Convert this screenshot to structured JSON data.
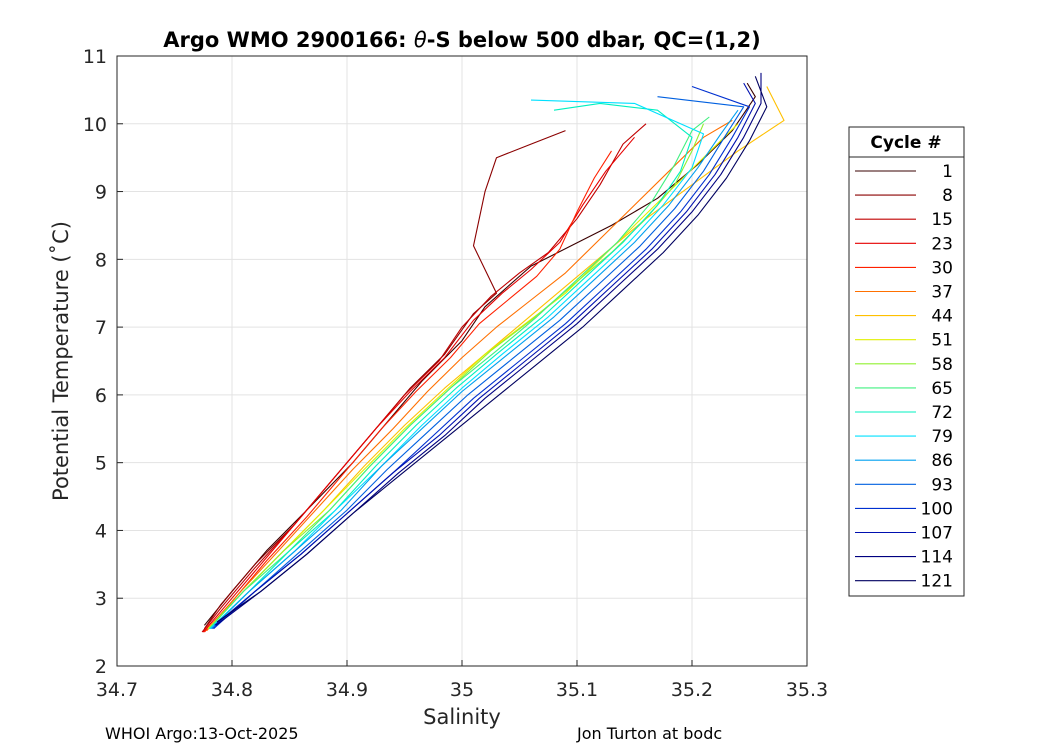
{
  "chart_data": {
    "type": "line",
    "title_prefix": "Argo WMO 2900166: ",
    "title_theta": "θ",
    "title_suffix": "-S below 500 dbar,  QC=(1,2)",
    "xlabel": "Salinity",
    "ylabel": "Potential Temperature (˚C)",
    "xlim": [
      34.7,
      35.3
    ],
    "ylim": [
      2,
      11
    ],
    "xticks": [
      "34.7",
      "34.8",
      "34.9",
      "35",
      "35.1",
      "35.2",
      "35.3"
    ],
    "yticks": [
      "2",
      "3",
      "4",
      "5",
      "6",
      "7",
      "8",
      "9",
      "10",
      "11"
    ],
    "grid": true,
    "legend_title": "Cycle #",
    "legend_position": "outside-right",
    "series": [
      {
        "name": "1",
        "color": "#3a0000",
        "points": [
          [
            34.776,
            2.6
          ],
          [
            34.8,
            3.1
          ],
          [
            34.83,
            3.7
          ],
          [
            34.865,
            4.3
          ],
          [
            34.905,
            5.0
          ],
          [
            34.935,
            5.6
          ],
          [
            34.965,
            6.2
          ],
          [
            35.0,
            6.8
          ],
          [
            35.02,
            7.3
          ],
          [
            35.04,
            7.6
          ],
          [
            35.06,
            7.9
          ],
          [
            35.095,
            8.2
          ],
          [
            35.13,
            8.5
          ],
          [
            35.17,
            8.9
          ],
          [
            35.205,
            9.4
          ],
          [
            35.235,
            9.9
          ],
          [
            35.255,
            10.4
          ],
          [
            35.248,
            10.6
          ]
        ]
      },
      {
        "name": "8",
        "color": "#8b0000",
        "points": [
          [
            34.776,
            2.55
          ],
          [
            34.79,
            2.9
          ],
          [
            34.82,
            3.5
          ],
          [
            34.855,
            4.1
          ],
          [
            34.89,
            4.8
          ],
          [
            34.925,
            5.5
          ],
          [
            34.955,
            6.1
          ],
          [
            34.985,
            6.6
          ],
          [
            35.01,
            7.2
          ],
          [
            35.03,
            7.5
          ],
          [
            35.01,
            8.2
          ],
          [
            35.02,
            9.0
          ],
          [
            35.03,
            9.5
          ],
          [
            35.06,
            9.7
          ],
          [
            35.09,
            9.9
          ]
        ]
      },
      {
        "name": "15",
        "color": "#c00000",
        "points": [
          [
            34.774,
            2.5
          ],
          [
            34.79,
            2.85
          ],
          [
            34.82,
            3.45
          ],
          [
            34.855,
            4.1
          ],
          [
            34.89,
            4.8
          ],
          [
            34.92,
            5.4
          ],
          [
            34.95,
            6.0
          ],
          [
            34.98,
            6.5
          ],
          [
            35.0,
            7.0
          ],
          [
            35.025,
            7.45
          ],
          [
            35.05,
            7.8
          ],
          [
            35.075,
            8.1
          ],
          [
            35.1,
            8.6
          ],
          [
            35.12,
            9.1
          ],
          [
            35.14,
            9.7
          ],
          [
            35.16,
            10.0
          ]
        ]
      },
      {
        "name": "23",
        "color": "#e60000",
        "points": [
          [
            34.775,
            2.5
          ],
          [
            34.8,
            3.0
          ],
          [
            34.83,
            3.6
          ],
          [
            34.86,
            4.2
          ],
          [
            34.895,
            4.9
          ],
          [
            34.925,
            5.5
          ],
          [
            34.955,
            6.05
          ],
          [
            34.985,
            6.55
          ],
          [
            35.01,
            7.1
          ],
          [
            35.035,
            7.5
          ],
          [
            35.06,
            7.85
          ],
          [
            35.085,
            8.25
          ],
          [
            35.105,
            8.8
          ],
          [
            35.125,
            9.3
          ],
          [
            35.15,
            9.8
          ]
        ]
      },
      {
        "name": "30",
        "color": "#ff2000",
        "points": [
          [
            34.776,
            2.5
          ],
          [
            34.8,
            2.95
          ],
          [
            34.83,
            3.55
          ],
          [
            34.865,
            4.2
          ],
          [
            34.9,
            4.9
          ],
          [
            34.93,
            5.5
          ],
          [
            34.96,
            6.05
          ],
          [
            34.99,
            6.55
          ],
          [
            35.015,
            7.05
          ],
          [
            35.04,
            7.4
          ],
          [
            35.065,
            7.75
          ],
          [
            35.085,
            8.15
          ],
          [
            35.1,
            8.7
          ],
          [
            35.115,
            9.2
          ],
          [
            35.13,
            9.6
          ]
        ]
      },
      {
        "name": "37",
        "color": "#ff7000",
        "points": [
          [
            34.778,
            2.52
          ],
          [
            34.805,
            3.05
          ],
          [
            34.835,
            3.6
          ],
          [
            34.87,
            4.25
          ],
          [
            34.905,
            4.9
          ],
          [
            34.94,
            5.5
          ],
          [
            34.97,
            6.05
          ],
          [
            35.0,
            6.55
          ],
          [
            35.03,
            7.0
          ],
          [
            35.06,
            7.4
          ],
          [
            35.09,
            7.8
          ],
          [
            35.12,
            8.3
          ],
          [
            35.15,
            8.8
          ],
          [
            35.18,
            9.3
          ],
          [
            35.21,
            9.8
          ],
          [
            35.235,
            10.05
          ]
        ]
      },
      {
        "name": "44",
        "color": "#ffc000",
        "points": [
          [
            34.779,
            2.55
          ],
          [
            34.81,
            3.1
          ],
          [
            34.845,
            3.7
          ],
          [
            34.88,
            4.3
          ],
          [
            34.915,
            4.95
          ],
          [
            34.95,
            5.55
          ],
          [
            34.985,
            6.1
          ],
          [
            35.02,
            6.6
          ],
          [
            35.055,
            7.1
          ],
          [
            35.09,
            7.6
          ],
          [
            35.125,
            8.1
          ],
          [
            35.16,
            8.6
          ],
          [
            35.2,
            9.1
          ],
          [
            35.24,
            9.6
          ],
          [
            35.28,
            10.05
          ],
          [
            35.265,
            10.55
          ]
        ]
      },
      {
        "name": "51",
        "color": "#e0f000",
        "points": [
          [
            34.779,
            2.55
          ],
          [
            34.81,
            3.1
          ],
          [
            34.845,
            3.7
          ],
          [
            34.88,
            4.3
          ],
          [
            34.915,
            4.9
          ],
          [
            34.95,
            5.5
          ],
          [
            34.985,
            6.05
          ],
          [
            35.02,
            6.6
          ],
          [
            35.055,
            7.05
          ],
          [
            35.09,
            7.5
          ],
          [
            35.12,
            8.0
          ],
          [
            35.15,
            8.5
          ],
          [
            35.18,
            9.0
          ],
          [
            35.21,
            9.5
          ],
          [
            35.24,
            10.0
          ]
        ]
      },
      {
        "name": "58",
        "color": "#90f030",
        "points": [
          [
            34.78,
            2.55
          ],
          [
            34.81,
            3.1
          ],
          [
            34.845,
            3.7
          ],
          [
            34.885,
            4.3
          ],
          [
            34.92,
            4.95
          ],
          [
            34.955,
            5.55
          ],
          [
            34.99,
            6.1
          ],
          [
            35.025,
            6.65
          ],
          [
            35.06,
            7.1
          ],
          [
            35.095,
            7.6
          ],
          [
            35.13,
            8.1
          ],
          [
            35.16,
            8.6
          ],
          [
            35.185,
            9.1
          ],
          [
            35.2,
            9.6
          ],
          [
            35.21,
            10.0
          ]
        ]
      },
      {
        "name": "65",
        "color": "#40f080",
        "points": [
          [
            34.78,
            2.55
          ],
          [
            34.81,
            3.1
          ],
          [
            34.85,
            3.7
          ],
          [
            34.885,
            4.3
          ],
          [
            34.92,
            4.95
          ],
          [
            34.955,
            5.55
          ],
          [
            34.99,
            6.1
          ],
          [
            35.03,
            6.65
          ],
          [
            35.065,
            7.15
          ],
          [
            35.1,
            7.7
          ],
          [
            35.135,
            8.25
          ],
          [
            35.165,
            8.85
          ],
          [
            35.185,
            9.4
          ],
          [
            35.2,
            9.9
          ],
          [
            35.215,
            10.1
          ]
        ]
      },
      {
        "name": "72",
        "color": "#00f0c0",
        "points": [
          [
            34.781,
            2.55
          ],
          [
            34.815,
            3.1
          ],
          [
            34.85,
            3.7
          ],
          [
            34.89,
            4.3
          ],
          [
            34.925,
            4.95
          ],
          [
            34.96,
            5.55
          ],
          [
            34.995,
            6.1
          ],
          [
            35.03,
            6.6
          ],
          [
            35.07,
            7.15
          ],
          [
            35.105,
            7.7
          ],
          [
            35.14,
            8.25
          ],
          [
            35.17,
            8.8
          ],
          [
            35.19,
            9.3
          ],
          [
            35.2,
            9.8
          ],
          [
            35.17,
            10.2
          ],
          [
            35.12,
            10.3
          ],
          [
            35.08,
            10.2
          ]
        ]
      },
      {
        "name": "79",
        "color": "#00e0ff",
        "points": [
          [
            34.781,
            2.55
          ],
          [
            34.815,
            3.1
          ],
          [
            34.855,
            3.7
          ],
          [
            34.89,
            4.3
          ],
          [
            34.93,
            4.95
          ],
          [
            34.965,
            5.55
          ],
          [
            35.0,
            6.1
          ],
          [
            35.035,
            6.6
          ],
          [
            35.075,
            7.15
          ],
          [
            35.11,
            7.7
          ],
          [
            35.145,
            8.25
          ],
          [
            35.175,
            8.8
          ],
          [
            35.2,
            9.35
          ],
          [
            35.21,
            9.85
          ],
          [
            35.15,
            10.3
          ],
          [
            35.06,
            10.35
          ]
        ]
      },
      {
        "name": "86",
        "color": "#00a0f0",
        "points": [
          [
            34.782,
            2.55
          ],
          [
            34.815,
            3.1
          ],
          [
            34.855,
            3.7
          ],
          [
            34.895,
            4.3
          ],
          [
            34.93,
            4.95
          ],
          [
            34.965,
            5.5
          ],
          [
            35.0,
            6.05
          ],
          [
            35.04,
            6.6
          ],
          [
            35.08,
            7.15
          ],
          [
            35.115,
            7.7
          ],
          [
            35.15,
            8.25
          ],
          [
            35.18,
            8.8
          ],
          [
            35.205,
            9.35
          ],
          [
            35.225,
            9.85
          ],
          [
            35.24,
            10.2
          ]
        ]
      },
      {
        "name": "93",
        "color": "#0060e0",
        "points": [
          [
            34.783,
            2.55
          ],
          [
            34.82,
            3.1
          ],
          [
            34.86,
            3.7
          ],
          [
            34.9,
            4.3
          ],
          [
            34.935,
            4.9
          ],
          [
            34.97,
            5.45
          ],
          [
            35.005,
            6.0
          ],
          [
            35.045,
            6.55
          ],
          [
            35.085,
            7.1
          ],
          [
            35.12,
            7.65
          ],
          [
            35.155,
            8.2
          ],
          [
            35.185,
            8.75
          ],
          [
            35.21,
            9.3
          ],
          [
            35.23,
            9.85
          ],
          [
            35.245,
            10.25
          ],
          [
            35.17,
            10.4
          ]
        ]
      },
      {
        "name": "100",
        "color": "#0030d0",
        "points": [
          [
            34.784,
            2.55
          ],
          [
            34.82,
            3.1
          ],
          [
            34.86,
            3.65
          ],
          [
            34.9,
            4.25
          ],
          [
            34.94,
            4.85
          ],
          [
            34.975,
            5.4
          ],
          [
            35.01,
            5.95
          ],
          [
            35.05,
            6.5
          ],
          [
            35.09,
            7.05
          ],
          [
            35.125,
            7.6
          ],
          [
            35.16,
            8.15
          ],
          [
            35.19,
            8.7
          ],
          [
            35.215,
            9.25
          ],
          [
            35.235,
            9.8
          ],
          [
            35.25,
            10.25
          ],
          [
            35.2,
            10.55
          ]
        ]
      },
      {
        "name": "107",
        "color": "#0010b0",
        "points": [
          [
            34.785,
            2.6
          ],
          [
            34.82,
            3.1
          ],
          [
            34.86,
            3.65
          ],
          [
            34.9,
            4.25
          ],
          [
            34.94,
            4.85
          ],
          [
            34.98,
            5.4
          ],
          [
            35.015,
            5.95
          ],
          [
            35.055,
            6.5
          ],
          [
            35.095,
            7.05
          ],
          [
            35.13,
            7.6
          ],
          [
            35.165,
            8.15
          ],
          [
            35.195,
            8.7
          ],
          [
            35.22,
            9.25
          ],
          [
            35.24,
            9.8
          ],
          [
            35.255,
            10.3
          ],
          [
            35.245,
            10.6
          ]
        ]
      },
      {
        "name": "114",
        "color": "#000080",
        "points": [
          [
            34.786,
            2.6
          ],
          [
            34.825,
            3.1
          ],
          [
            34.865,
            3.65
          ],
          [
            34.905,
            4.25
          ],
          [
            34.945,
            4.85
          ],
          [
            34.985,
            5.4
          ],
          [
            35.02,
            5.95
          ],
          [
            35.06,
            6.5
          ],
          [
            35.1,
            7.05
          ],
          [
            35.135,
            7.6
          ],
          [
            35.17,
            8.15
          ],
          [
            35.2,
            8.7
          ],
          [
            35.225,
            9.25
          ],
          [
            35.245,
            9.8
          ],
          [
            35.26,
            10.3
          ],
          [
            35.26,
            10.75
          ]
        ]
      },
      {
        "name": "121",
        "color": "#000060",
        "points": [
          [
            34.787,
            2.65
          ],
          [
            34.825,
            3.1
          ],
          [
            34.865,
            3.65
          ],
          [
            34.905,
            4.25
          ],
          [
            34.945,
            4.8
          ],
          [
            34.985,
            5.35
          ],
          [
            35.025,
            5.9
          ],
          [
            35.065,
            6.45
          ],
          [
            35.105,
            7.0
          ],
          [
            35.14,
            7.55
          ],
          [
            35.175,
            8.1
          ],
          [
            35.205,
            8.65
          ],
          [
            35.23,
            9.2
          ],
          [
            35.25,
            9.75
          ],
          [
            35.265,
            10.25
          ],
          [
            35.255,
            10.7
          ]
        ]
      }
    ]
  },
  "footer": {
    "left": "WHOI Argo:13-Oct-2025",
    "right": "Jon Turton at bodc"
  }
}
